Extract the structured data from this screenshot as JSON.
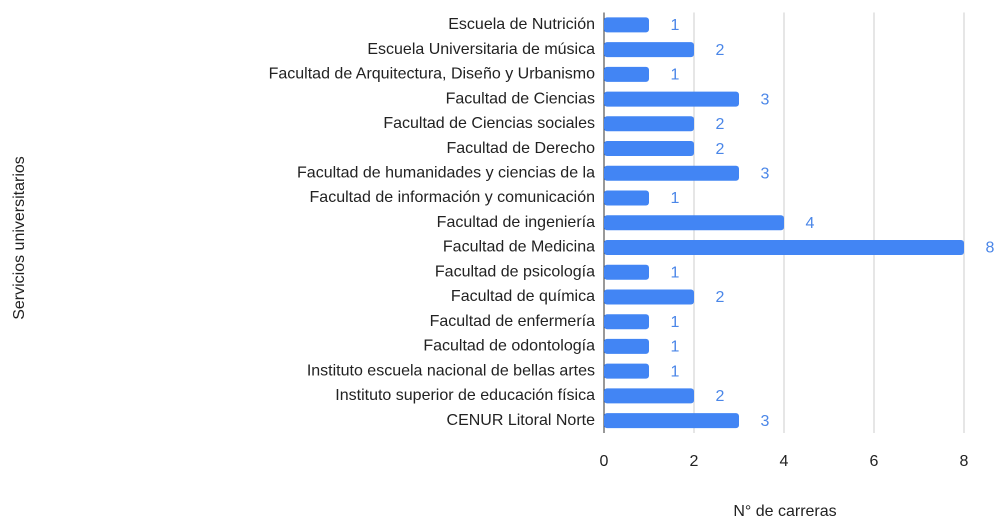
{
  "chart_data": {
    "type": "barh",
    "xlabel": "N° de carreras",
    "ylabel": "Servicios universitarios",
    "categories": [
      "Escuela de Nutrición",
      "Escuela Universitaria de música",
      "Facultad de Arquitectura, Diseño y Urbanismo",
      "Facultad de Ciencias",
      "Facultad de Ciencias sociales",
      "Facultad de Derecho",
      "Facultad de humanidades y ciencias de la",
      "Facultad de información y comunicación",
      "Facultad de ingeniería",
      "Facultad de Medicina",
      "Facultad de psicología",
      "Facultad de química",
      "Facultad de enfermería",
      "Facultad de odontología",
      "Instituto escuela nacional de bellas artes",
      "Instituto superior de educación física",
      "CENUR Litoral Norte"
    ],
    "values": [
      1,
      2,
      1,
      3,
      2,
      2,
      3,
      1,
      4,
      8,
      1,
      2,
      1,
      1,
      1,
      2,
      3
    ],
    "color": "#4285f4",
    "xlim": [
      0,
      8
    ],
    "xticks": [
      0,
      2,
      4,
      6,
      8
    ],
    "grid": true
  }
}
